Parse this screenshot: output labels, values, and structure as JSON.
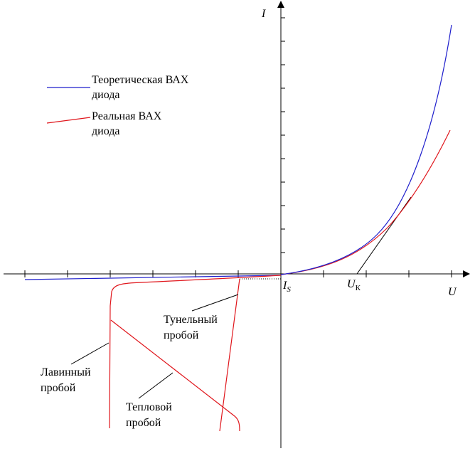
{
  "chart_data": {
    "type": "line",
    "title": "",
    "xlabel": "U",
    "ylabel": "I",
    "grid": false,
    "legend": {
      "placement": "top-left",
      "entries": [
        {
          "line1": "Теоретическая ВАХ",
          "line2": "диода",
          "color": "#1f1fcc"
        },
        {
          "line1": "Реальная ВАХ",
          "line2": "диода",
          "color": "#e0161c"
        }
      ]
    },
    "tick_labels": {
      "is_main": "I",
      "is_sub": "S",
      "uk_main": "U",
      "uk_sub": "К"
    },
    "annotations": [
      {
        "id": "tunnel",
        "line1": "Тунельный",
        "line2": "пробой"
      },
      {
        "id": "avalanche",
        "line1": "Лавинный",
        "line2": "пробой"
      },
      {
        "id": "thermal",
        "line1": "Тепловой",
        "line2": "пробой"
      }
    ],
    "colors": {
      "theoretical": "#1f1fcc",
      "real": "#e0161c",
      "axis": "#000000"
    }
  }
}
